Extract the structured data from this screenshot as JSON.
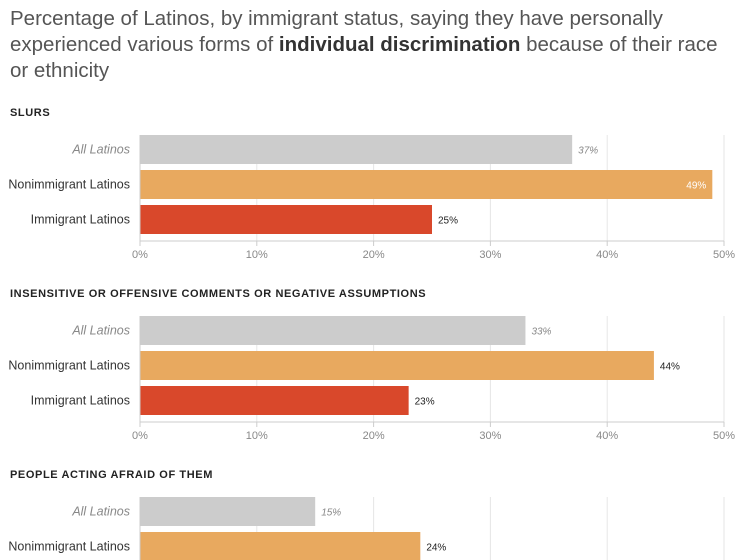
{
  "title": {
    "part1": "Percentage of Latinos, by immigrant status, saying they have personally experienced various forms of ",
    "bold": "individual discrimination",
    "part2": " because of their race or ethnicity"
  },
  "colors": {
    "All Latinos": "#cccccc",
    "Nonimmigrant Latinos": "#e8a95f",
    "Immigrant Latinos": "#d9482b"
  },
  "chart_data": [
    {
      "type": "bar",
      "orientation": "horizontal",
      "title": "SLURS",
      "categories": [
        "All Latinos",
        "Nonimmigrant Latinos",
        "Immigrant Latinos"
      ],
      "values": [
        37,
        49,
        25
      ],
      "value_labels": [
        "37%",
        "49%",
        "25%"
      ],
      "xlim": [
        0,
        50
      ],
      "ticks": [
        0,
        10,
        20,
        30,
        40,
        50
      ],
      "tick_labels": [
        "0%",
        "10%",
        "20%",
        "30%",
        "40%",
        "50%"
      ],
      "grid": true
    },
    {
      "type": "bar",
      "orientation": "horizontal",
      "title": "INSENSITIVE OR OFFENSIVE COMMENTS OR NEGATIVE ASSUMPTIONS",
      "categories": [
        "All Latinos",
        "Nonimmigrant Latinos",
        "Immigrant Latinos"
      ],
      "values": [
        33,
        44,
        23
      ],
      "value_labels": [
        "33%",
        "44%",
        "23%"
      ],
      "xlim": [
        0,
        50
      ],
      "ticks": [
        0,
        10,
        20,
        30,
        40,
        50
      ],
      "tick_labels": [
        "0%",
        "10%",
        "20%",
        "30%",
        "40%",
        "50%"
      ],
      "grid": true
    },
    {
      "type": "bar",
      "orientation": "horizontal",
      "title": "PEOPLE ACTING AFRAID OF THEM",
      "categories": [
        "All Latinos",
        "Nonimmigrant Latinos"
      ],
      "values": [
        15,
        24
      ],
      "value_labels": [
        "15%",
        "24%"
      ],
      "xlim": [
        0,
        50
      ],
      "grid": true
    }
  ]
}
